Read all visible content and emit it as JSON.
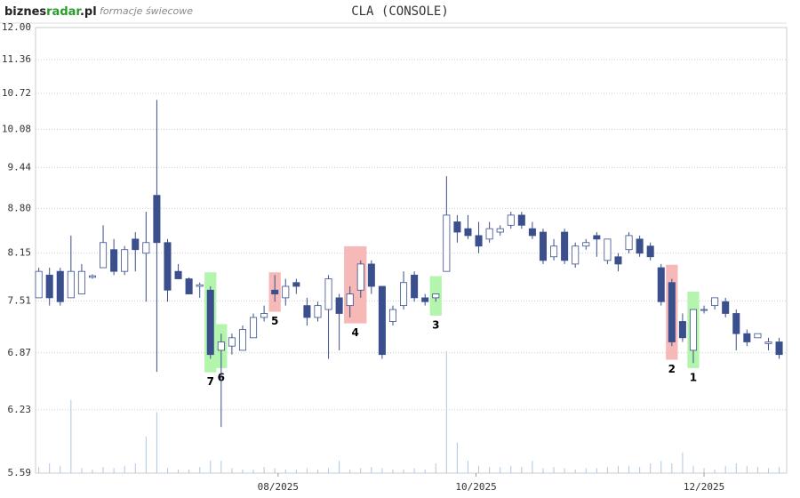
{
  "header": {
    "logo": [
      "biznes",
      "radar",
      ".pl"
    ],
    "subtitle": "formacje świecowe"
  },
  "chart_data": {
    "type": "candlestick",
    "title": "CLA (CONSOLE)",
    "log_scale": true,
    "grid": true,
    "ylim": [
      5.59,
      12.0
    ],
    "yticks": [
      5.59,
      6.23,
      6.87,
      7.51,
      8.15,
      {
        "value": 8.8,
        "label": "8.80"
      },
      9.44,
      10.08,
      10.72,
      11.36,
      {
        "value": 12.0,
        "label": "12.00"
      }
    ],
    "xlim": [
      -0.3,
      69.7
    ],
    "xticks": [
      {
        "value": 22.3,
        "label": "08/2025"
      },
      {
        "value": 40.75,
        "label": "10/2025"
      },
      {
        "value": 62,
        "label": "12/2025"
      }
    ],
    "up_color": "#ffffff",
    "down_color": "#3a4f8c",
    "outline_color": "#3a4f8c",
    "volume_color": "#a9c8e8",
    "open": [
      7.55,
      7.85,
      7.9,
      7.55,
      7.6,
      7.82,
      7.95,
      8.2,
      7.9,
      8.35,
      8.15,
      9.0,
      8.3,
      7.9,
      7.8,
      7.7,
      7.65,
      6.9,
      6.95,
      6.9,
      7.05,
      7.3,
      7.65,
      7.55,
      7.75,
      7.45,
      7.3,
      7.4,
      7.55,
      7.45,
      7.65,
      8.0,
      7.7,
      7.25,
      7.45,
      7.85,
      7.55,
      7.55,
      7.9,
      8.6,
      8.5,
      8.4,
      8.35,
      8.45,
      8.55,
      8.7,
      8.5,
      8.45,
      8.1,
      8.45,
      8.0,
      8.25,
      8.4,
      8.05,
      8.1,
      8.2,
      8.35,
      8.25,
      7.95,
      7.75,
      7.25,
      6.9,
      7.4,
      7.45,
      7.5,
      7.35,
      7.1,
      7.05,
      6.98,
      7.0
    ],
    "high": [
      7.95,
      7.95,
      7.95,
      8.4,
      8.0,
      7.86,
      8.55,
      8.35,
      8.25,
      8.45,
      8.75,
      10.6,
      8.35,
      8.0,
      7.82,
      7.75,
      7.7,
      7.1,
      7.1,
      7.2,
      7.35,
      7.45,
      7.85,
      7.8,
      7.8,
      7.55,
      7.5,
      7.85,
      7.6,
      7.7,
      8.05,
      8.05,
      7.7,
      7.45,
      7.9,
      7.9,
      7.6,
      7.6,
      9.3,
      8.7,
      8.7,
      8.6,
      8.6,
      8.55,
      8.75,
      8.75,
      8.6,
      8.5,
      8.35,
      8.5,
      8.3,
      8.35,
      8.45,
      8.35,
      8.15,
      8.45,
      8.4,
      8.3,
      8.0,
      7.8,
      7.35,
      7.4,
      7.45,
      7.55,
      7.55,
      7.4,
      7.15,
      7.1,
      7.05,
      7.05
    ],
    "low": [
      7.55,
      7.45,
      7.45,
      7.55,
      7.6,
      7.8,
      7.95,
      7.85,
      7.85,
      7.9,
      7.5,
      6.65,
      7.5,
      7.8,
      7.6,
      7.55,
      6.8,
      6.05,
      6.85,
      6.9,
      7.05,
      7.25,
      7.5,
      7.45,
      7.6,
      7.2,
      7.25,
      6.8,
      6.9,
      7.3,
      7.55,
      7.6,
      6.8,
      7.2,
      7.4,
      7.5,
      7.45,
      7.5,
      7.9,
      8.3,
      8.35,
      8.15,
      8.3,
      8.4,
      8.5,
      8.5,
      8.35,
      8.0,
      8.05,
      8.0,
      7.95,
      8.2,
      8.1,
      8.0,
      7.9,
      8.15,
      8.1,
      8.05,
      7.45,
      6.95,
      7.0,
      6.75,
      7.35,
      7.4,
      7.3,
      6.9,
      6.95,
      7.05,
      6.9,
      6.8
    ],
    "close": [
      7.9,
      7.55,
      7.5,
      7.9,
      7.9,
      7.84,
      8.3,
      7.9,
      8.2,
      8.2,
      8.3,
      8.3,
      7.65,
      7.8,
      7.6,
      7.72,
      6.85,
      7.0,
      7.05,
      7.15,
      7.3,
      7.35,
      7.6,
      7.7,
      7.7,
      7.3,
      7.45,
      7.8,
      7.35,
      7.6,
      8.0,
      7.7,
      6.85,
      7.4,
      7.75,
      7.55,
      7.5,
      7.6,
      8.7,
      8.45,
      8.4,
      8.25,
      8.5,
      8.5,
      8.7,
      8.55,
      8.4,
      8.05,
      8.25,
      8.05,
      8.25,
      8.3,
      8.35,
      8.35,
      8.0,
      8.4,
      8.15,
      8.1,
      7.5,
      7.0,
      7.05,
      7.4,
      7.4,
      7.55,
      7.35,
      7.1,
      7.0,
      7.1,
      7.0,
      6.85
    ],
    "volume": [
      5,
      8,
      6,
      60,
      4,
      3,
      5,
      4,
      6,
      8,
      30,
      50,
      4,
      3,
      3,
      5,
      10,
      10,
      4,
      3,
      3,
      5,
      4,
      3,
      3,
      4,
      3,
      4,
      10,
      3,
      4,
      5,
      4,
      3,
      3,
      4,
      3,
      8,
      100,
      25,
      10,
      6,
      5,
      5,
      6,
      5,
      10,
      4,
      5,
      4,
      3,
      4,
      4,
      5,
      6,
      6,
      5,
      8,
      10,
      8,
      17,
      6,
      4,
      3,
      6,
      8,
      6,
      5,
      4,
      5
    ],
    "patterns": [
      {
        "label": "7",
        "color": "#b3f5ad",
        "candles": [
          16,
          16
        ]
      },
      {
        "label": "6",
        "color": "#b3f5ad",
        "candles": [
          17,
          17
        ]
      },
      {
        "label": "5",
        "color": "#f7b8b8",
        "candles": [
          22,
          22
        ]
      },
      {
        "label": "4",
        "color": "#f7b8b8",
        "candles": [
          29,
          30
        ]
      },
      {
        "label": "3",
        "color": "#b3f5ad",
        "candles": [
          37,
          37
        ]
      },
      {
        "label": "2",
        "color": "#f7b8b8",
        "candles": [
          59,
          59
        ]
      },
      {
        "label": "1",
        "color": "#b3f5ad",
        "candles": [
          61,
          61
        ]
      }
    ]
  }
}
